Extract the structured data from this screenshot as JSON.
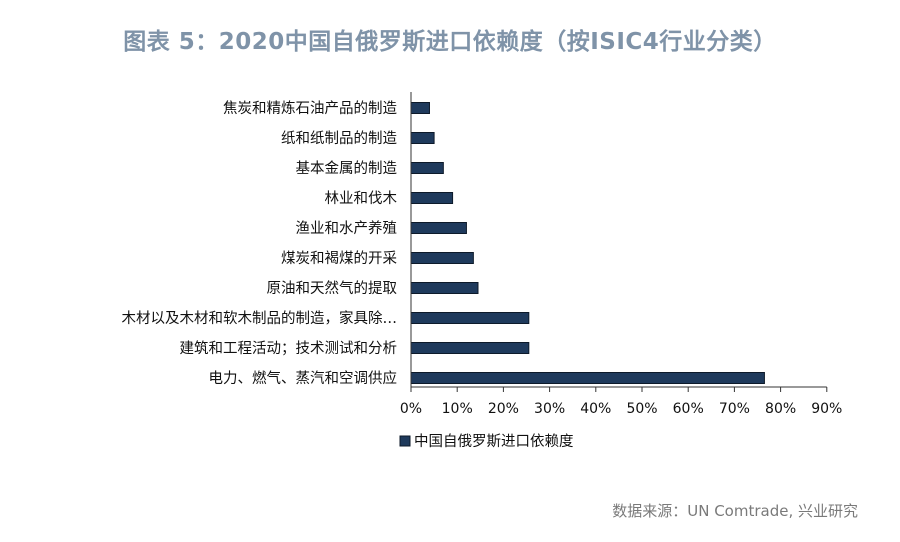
{
  "title": "图表 5：2020中国自俄罗斯进口依赖度（按ISIC4行业分类）",
  "source": "数据来源：UN Comtrade, 兴业研究",
  "chart_data": {
    "type": "bar",
    "orientation": "horizontal",
    "categories": [
      "焦炭和精炼石油产品的制造",
      "纸和纸制品的制造",
      "基本金属的制造",
      "林业和伐木",
      "渔业和水产养殖",
      "煤炭和褐煤的开采",
      "原油和天然气的提取",
      "木材以及木材和软木制品的制造，家具除…",
      "建筑和工程活动；技术测试和分析",
      "电力、燃气、蒸汽和空调供应"
    ],
    "series": [
      {
        "name": "中国自俄罗斯进口依赖度",
        "values": [
          0.04,
          0.05,
          0.07,
          0.09,
          0.12,
          0.135,
          0.145,
          0.255,
          0.255,
          0.765
        ]
      }
    ],
    "xlim": [
      0,
      0.9
    ],
    "xticks": [
      "0%",
      "10%",
      "20%",
      "30%",
      "40%",
      "50%",
      "60%",
      "70%",
      "80%",
      "90%"
    ],
    "legend_position": "bottom-left",
    "bar_color": "#1f3a5c",
    "grid": false
  }
}
